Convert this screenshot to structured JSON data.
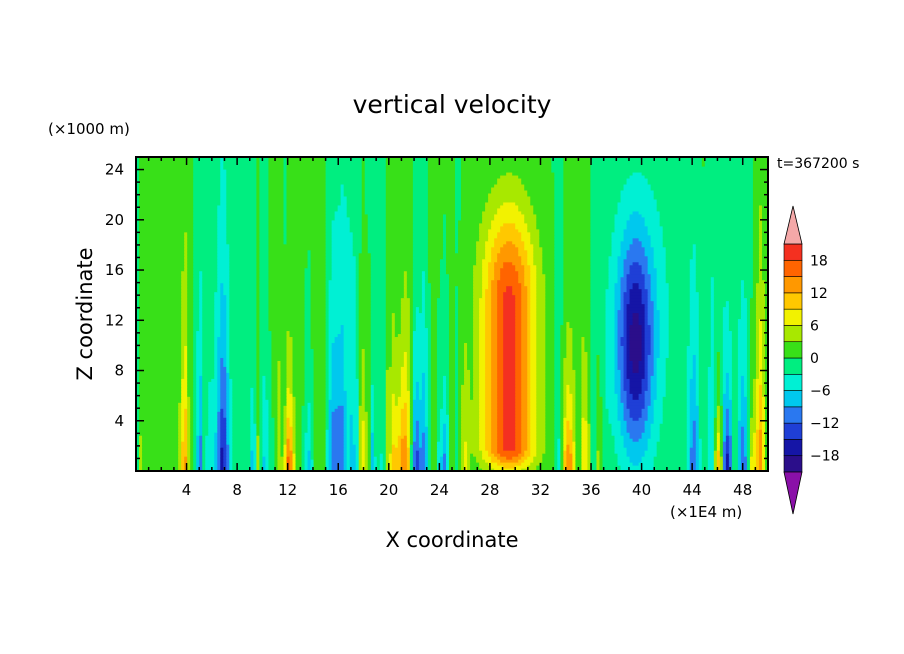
{
  "chart_data": {
    "type": "heatmap",
    "title": "vertical velocity",
    "time_label": "t=367200 s",
    "xlabel": "X coordinate",
    "ylabel": "Z coordinate",
    "x_unit": "(×1E4 m)",
    "y_unit": "(×1000 m)",
    "xlim": [
      0,
      50
    ],
    "ylim": [
      0,
      25
    ],
    "x_ticks": [
      4,
      8,
      12,
      16,
      20,
      24,
      28,
      32,
      36,
      40,
      44,
      48
    ],
    "y_ticks": [
      4,
      8,
      12,
      16,
      20,
      24
    ],
    "colorbar": {
      "levels": [
        -21,
        -18,
        -15,
        -12,
        -9,
        -6,
        -3,
        0,
        3,
        6,
        9,
        12,
        15,
        18,
        21
      ],
      "colors": [
        "#5e1196",
        "#2b0e8a",
        "#1515a6",
        "#1f3fd6",
        "#2a78f0",
        "#00c8ee",
        "#00f0d4",
        "#00ee80",
        "#38e018",
        "#a8e800",
        "#f2f200",
        "#ffc800",
        "#ff9800",
        "#ff6400",
        "#f43020",
        "#e81c1c"
      ],
      "under_color": "#8a10a8",
      "over_color": "#f4a8a8",
      "tick_labels": [
        "18",
        "12",
        "6",
        "0",
        "−6",
        "−12",
        "−18"
      ],
      "tick_values": [
        18,
        12,
        6,
        0,
        -6,
        -12,
        -18
      ]
    },
    "features": [
      {
        "name": "updraft",
        "x": 29.5,
        "z_top": 23.5,
        "peak": 18
      },
      {
        "name": "downdraft",
        "x": 39.5,
        "z_top": 22.5,
        "peak": -15
      }
    ]
  }
}
